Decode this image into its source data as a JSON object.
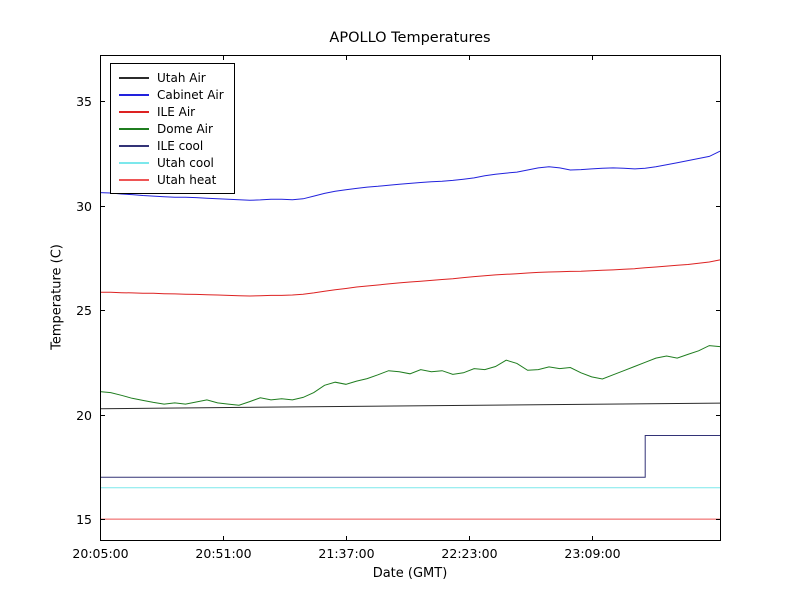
{
  "chart_data": {
    "type": "line",
    "title": "APOLLO Temperatures",
    "xlabel": "Date (GMT)",
    "ylabel": "Temperature (C)",
    "grid": false,
    "legend_position": "upper left",
    "x_unit": "minutes after 20:05:00",
    "xlim": [
      0,
      232
    ],
    "ylim": [
      14.0,
      37.2
    ],
    "x_ticks": [
      {
        "pos": 0,
        "label": "20:05:00"
      },
      {
        "pos": 46,
        "label": "20:51:00"
      },
      {
        "pos": 92,
        "label": "21:37:00"
      },
      {
        "pos": 138,
        "label": "22:23:00"
      },
      {
        "pos": 184,
        "label": "23:09:00"
      }
    ],
    "y_ticks": [
      {
        "pos": 15,
        "label": "15"
      },
      {
        "pos": 20,
        "label": "20"
      },
      {
        "pos": 25,
        "label": "25"
      },
      {
        "pos": 30,
        "label": "30"
      },
      {
        "pos": 35,
        "label": "35"
      }
    ],
    "x": [
      0,
      4,
      8,
      12,
      16,
      20,
      24,
      28,
      32,
      36,
      40,
      44,
      48,
      52,
      56,
      60,
      64,
      68,
      72,
      76,
      80,
      84,
      88,
      92,
      96,
      100,
      104,
      108,
      112,
      116,
      120,
      124,
      128,
      132,
      136,
      140,
      144,
      148,
      152,
      156,
      160,
      164,
      168,
      172,
      176,
      180,
      184,
      188,
      192,
      196,
      200,
      204,
      208,
      212,
      216,
      220,
      224,
      228,
      232
    ],
    "series": [
      {
        "name": "Utah Air",
        "color": "#2b2b2b",
        "x": [
          0,
          232
        ],
        "y": [
          20.28,
          20.55
        ]
      },
      {
        "name": "Cabinet Air",
        "color": "#2222dd",
        "y": [
          30.62,
          30.6,
          30.55,
          30.52,
          30.48,
          30.45,
          30.42,
          30.4,
          30.4,
          30.38,
          30.35,
          30.32,
          30.3,
          30.28,
          30.25,
          30.27,
          30.3,
          30.3,
          30.28,
          30.32,
          30.45,
          30.58,
          30.68,
          30.75,
          30.82,
          30.88,
          30.92,
          30.97,
          31.02,
          31.06,
          31.1,
          31.14,
          31.16,
          31.2,
          31.26,
          31.32,
          31.42,
          31.5,
          31.55,
          31.6,
          31.7,
          31.8,
          31.85,
          31.8,
          31.7,
          31.72,
          31.75,
          31.78,
          31.8,
          31.78,
          31.75,
          31.78,
          31.85,
          31.95,
          32.05,
          32.15,
          32.25,
          32.35,
          32.6
        ]
      },
      {
        "name": "ILE Air",
        "color": "#dd2222",
        "y": [
          25.85,
          25.85,
          25.83,
          25.82,
          25.8,
          25.8,
          25.78,
          25.77,
          25.76,
          25.75,
          25.73,
          25.72,
          25.7,
          25.68,
          25.67,
          25.68,
          25.7,
          25.7,
          25.72,
          25.76,
          25.82,
          25.9,
          25.97,
          26.03,
          26.1,
          26.15,
          26.2,
          26.25,
          26.3,
          26.34,
          26.38,
          26.42,
          26.46,
          26.5,
          26.55,
          26.6,
          26.64,
          26.68,
          26.71,
          26.74,
          26.77,
          26.8,
          26.82,
          26.83,
          26.85,
          26.86,
          26.88,
          26.9,
          26.92,
          26.95,
          26.98,
          27.02,
          27.06,
          27.1,
          27.14,
          27.18,
          27.24,
          27.3,
          27.4
        ]
      },
      {
        "name": "Dome Air",
        "color": "#1f7d1f",
        "y": [
          21.1,
          21.05,
          20.92,
          20.78,
          20.68,
          20.58,
          20.5,
          20.56,
          20.5,
          20.6,
          20.7,
          20.56,
          20.5,
          20.45,
          20.62,
          20.8,
          20.7,
          20.76,
          20.7,
          20.82,
          21.05,
          21.4,
          21.55,
          21.45,
          21.6,
          21.72,
          21.9,
          22.1,
          22.05,
          21.95,
          22.15,
          22.05,
          22.1,
          21.92,
          22.0,
          22.2,
          22.15,
          22.3,
          22.6,
          22.45,
          22.12,
          22.15,
          22.28,
          22.2,
          22.25,
          22.0,
          21.8,
          21.7,
          21.9,
          22.1,
          22.3,
          22.5,
          22.7,
          22.8,
          22.7,
          22.88,
          23.05,
          23.3,
          23.25
        ]
      },
      {
        "name": "ILE cool",
        "color": "#333377",
        "x": [
          0,
          204,
          204,
          232
        ],
        "y": [
          17.0,
          17.0,
          19.0,
          19.0
        ]
      },
      {
        "name": "Utah cool",
        "color": "#7ce8ec",
        "x": [
          0,
          232
        ],
        "y": [
          16.5,
          16.5
        ]
      },
      {
        "name": "Utah heat",
        "color": "#ee5555",
        "x": [
          0,
          232
        ],
        "y": [
          15.0,
          15.0
        ]
      }
    ]
  }
}
